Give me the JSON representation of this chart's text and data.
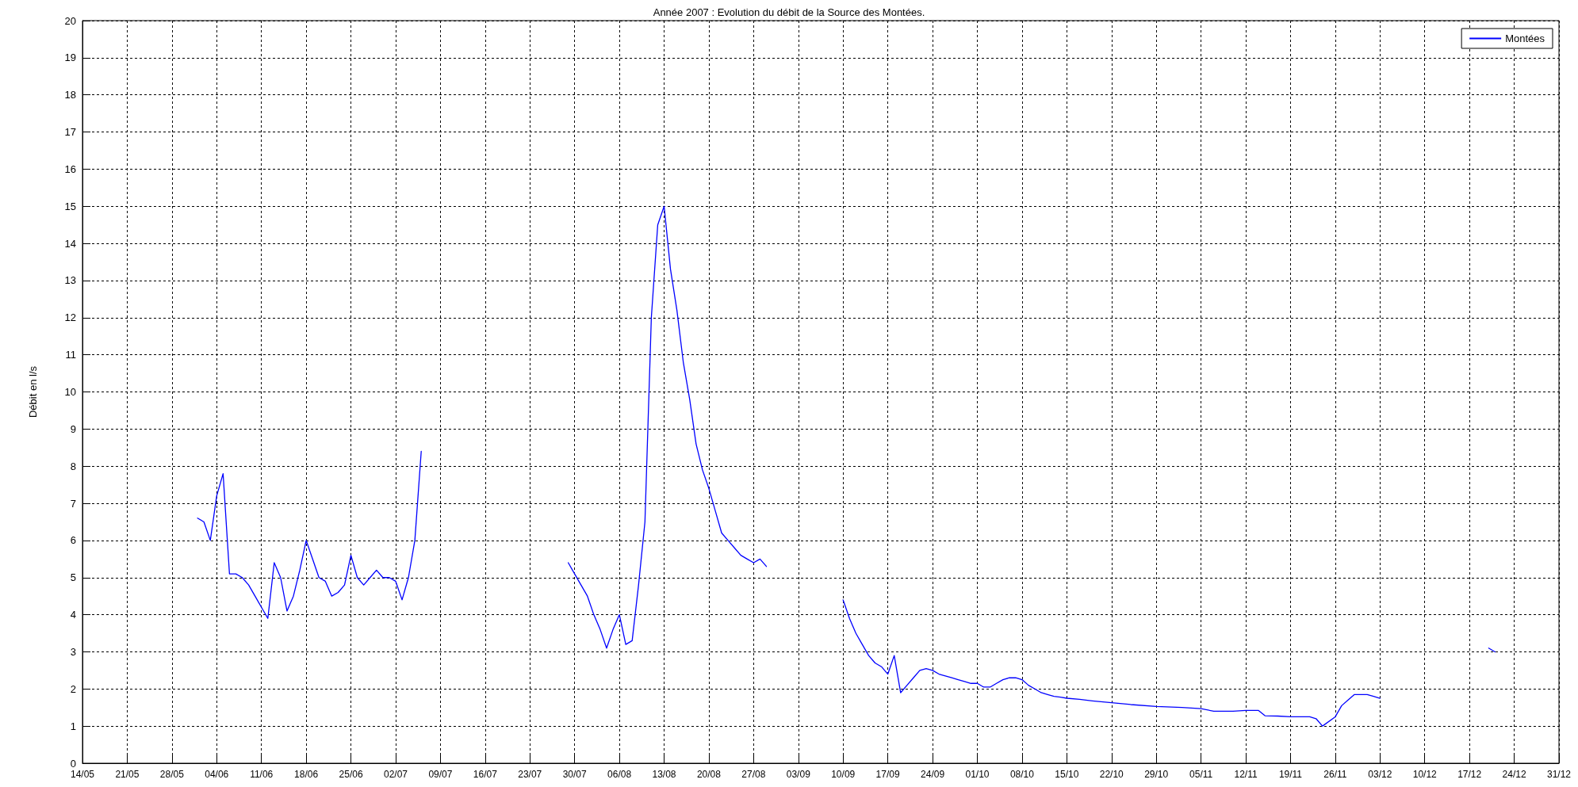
{
  "chart_data": {
    "type": "line",
    "title": "Année 2007 : Evolution du débit de la Source des Montées.",
    "ylabel": "Débit en l/s",
    "x": [
      "--06-01",
      "--06-02",
      "--06-03",
      "--06-04",
      "--06-05",
      "--06-06",
      "--06-07",
      "--06-08",
      "--06-09",
      "--06-10",
      "--06-11",
      "--06-12",
      "--06-13",
      "--06-14",
      "--06-15",
      "--06-16",
      "--06-17",
      "--06-18",
      "--06-19",
      "--06-20",
      "--06-21",
      "--06-22",
      "--06-23",
      "--06-24",
      "--06-25",
      "--06-26",
      "--06-27",
      "--06-28",
      "--06-29",
      "--06-30",
      "--07-01",
      "--07-02",
      "--07-03",
      "--07-04",
      "--07-05",
      "--07-06",
      "--07-15",
      "--07-29",
      "--07-30",
      "--07-31",
      "--08-01",
      "--08-02",
      "--08-03",
      "--08-04",
      "--08-05",
      "--08-06",
      "--08-07",
      "--08-08",
      "--08-09",
      "--08-10",
      "--08-11",
      "--08-12",
      "--08-13",
      "--08-14",
      "--08-15",
      "--08-16",
      "--08-17",
      "--08-18",
      "--08-19",
      "--08-20",
      "--08-21",
      "--08-22",
      "--08-23",
      "--08-24",
      "--08-25",
      "--08-26",
      "--08-27",
      "--08-28",
      "--08-29",
      "--09-05",
      "--09-10",
      "--09-11",
      "--09-12",
      "--09-13",
      "--09-14",
      "--09-15",
      "--09-16",
      "--09-17",
      "--09-18",
      "--09-19",
      "--09-20",
      "--09-21",
      "--09-22",
      "--09-23",
      "--09-24",
      "--09-25",
      "--09-26",
      "--09-27",
      "--09-28",
      "--09-29",
      "--09-30",
      "--10-01",
      "--10-02",
      "--10-03",
      "--10-04",
      "--10-05",
      "--10-06",
      "--10-07",
      "--10-08",
      "--10-09",
      "--10-10",
      "--10-11",
      "--10-12",
      "--10-13",
      "--10-14",
      "--10-15",
      "--10-17",
      "--10-19",
      "--10-22",
      "--10-25",
      "--10-29",
      "--11-02",
      "--11-05",
      "--11-07",
      "--11-10",
      "--11-12",
      "--11-14",
      "--11-15",
      "--11-17",
      "--11-19",
      "--11-22",
      "--11-23",
      "--11-24",
      "--11-26",
      "--11-27",
      "--11-28",
      "--11-29",
      "--12-01",
      "--12-02",
      "--12-03",
      "--12-10",
      "--12-20",
      "--12-21"
    ],
    "series": [
      {
        "name": "Montées",
        "color": "#0000ff",
        "values": [
          6.6,
          6.5,
          6.0,
          7.2,
          7.8,
          5.1,
          5.1,
          5.0,
          4.8,
          4.5,
          4.2,
          3.9,
          5.4,
          5.0,
          4.1,
          4.5,
          5.2,
          6.0,
          5.5,
          5.0,
          4.9,
          4.5,
          4.6,
          4.8,
          5.6,
          5.0,
          4.8,
          5.0,
          5.2,
          5.0,
          5.0,
          4.9,
          4.4,
          5.0,
          6.0,
          8.4,
          null,
          5.4,
          5.1,
          4.8,
          4.5,
          4.0,
          3.6,
          3.1,
          3.6,
          4.0,
          3.2,
          3.3,
          4.8,
          6.5,
          12.0,
          14.5,
          15.0,
          13.3,
          12.2,
          10.8,
          9.8,
          8.6,
          7.9,
          7.4,
          6.8,
          6.2,
          6.0,
          5.8,
          5.6,
          5.5,
          5.4,
          5.5,
          5.3,
          null,
          4.4,
          3.9,
          3.5,
          3.2,
          2.9,
          2.7,
          2.6,
          2.4,
          2.9,
          1.9,
          2.1,
          2.3,
          2.5,
          2.55,
          2.5,
          2.4,
          2.35,
          2.3,
          2.25,
          2.2,
          2.15,
          2.15,
          2.05,
          2.05,
          2.15,
          2.25,
          2.3,
          2.3,
          2.25,
          2.1,
          2.0,
          1.9,
          1.85,
          1.8,
          1.78,
          1.75,
          1.72,
          1.68,
          1.63,
          1.58,
          1.53,
          1.5,
          1.47,
          1.4,
          1.4,
          1.42,
          1.42,
          1.28,
          1.27,
          1.25,
          1.25,
          1.2,
          1.0,
          1.25,
          1.55,
          1.7,
          1.85,
          1.85,
          1.8,
          1.75,
          null,
          3.1,
          3.0
        ]
      }
    ],
    "xlim": [
      "--05-14",
      "--12-31"
    ],
    "xticks": [
      {
        "value": "--05-14",
        "label": "14/05"
      },
      {
        "value": "--05-21",
        "label": "21/05"
      },
      {
        "value": "--05-28",
        "label": "28/05"
      },
      {
        "value": "--06-04",
        "label": "04/06"
      },
      {
        "value": "--06-11",
        "label": "11/06"
      },
      {
        "value": "--06-18",
        "label": "18/06"
      },
      {
        "value": "--06-25",
        "label": "25/06"
      },
      {
        "value": "--07-02",
        "label": "02/07"
      },
      {
        "value": "--07-09",
        "label": "09/07"
      },
      {
        "value": "--07-16",
        "label": "16/07"
      },
      {
        "value": "--07-23",
        "label": "23/07"
      },
      {
        "value": "--07-30",
        "label": "30/07"
      },
      {
        "value": "--08-06",
        "label": "06/08"
      },
      {
        "value": "--08-13",
        "label": "13/08"
      },
      {
        "value": "--08-20",
        "label": "20/08"
      },
      {
        "value": "--08-27",
        "label": "27/08"
      },
      {
        "value": "--09-03",
        "label": "03/09"
      },
      {
        "value": "--09-10",
        "label": "10/09"
      },
      {
        "value": "--09-17",
        "label": "17/09"
      },
      {
        "value": "--09-24",
        "label": "24/09"
      },
      {
        "value": "--10-01",
        "label": "01/10"
      },
      {
        "value": "--10-08",
        "label": "08/10"
      },
      {
        "value": "--10-15",
        "label": "15/10"
      },
      {
        "value": "--10-22",
        "label": "22/10"
      },
      {
        "value": "--10-29",
        "label": "29/10"
      },
      {
        "value": "--11-05",
        "label": "05/11"
      },
      {
        "value": "--11-12",
        "label": "12/11"
      },
      {
        "value": "--11-19",
        "label": "19/11"
      },
      {
        "value": "--11-26",
        "label": "26/11"
      },
      {
        "value": "--12-03",
        "label": "03/12"
      },
      {
        "value": "--12-10",
        "label": "10/12"
      },
      {
        "value": "--12-17",
        "label": "17/12"
      },
      {
        "value": "--12-24",
        "label": "24/12"
      },
      {
        "value": "--12-31",
        "label": "31/12"
      }
    ],
    "ylim": [
      0,
      20
    ],
    "yticks": [
      0,
      1,
      2,
      3,
      4,
      5,
      6,
      7,
      8,
      9,
      10,
      11,
      12,
      13,
      14,
      15,
      16,
      17,
      18,
      19,
      20
    ],
    "grid": true,
    "legend": "top right",
    "marker": "none",
    "line_style": "solid"
  }
}
